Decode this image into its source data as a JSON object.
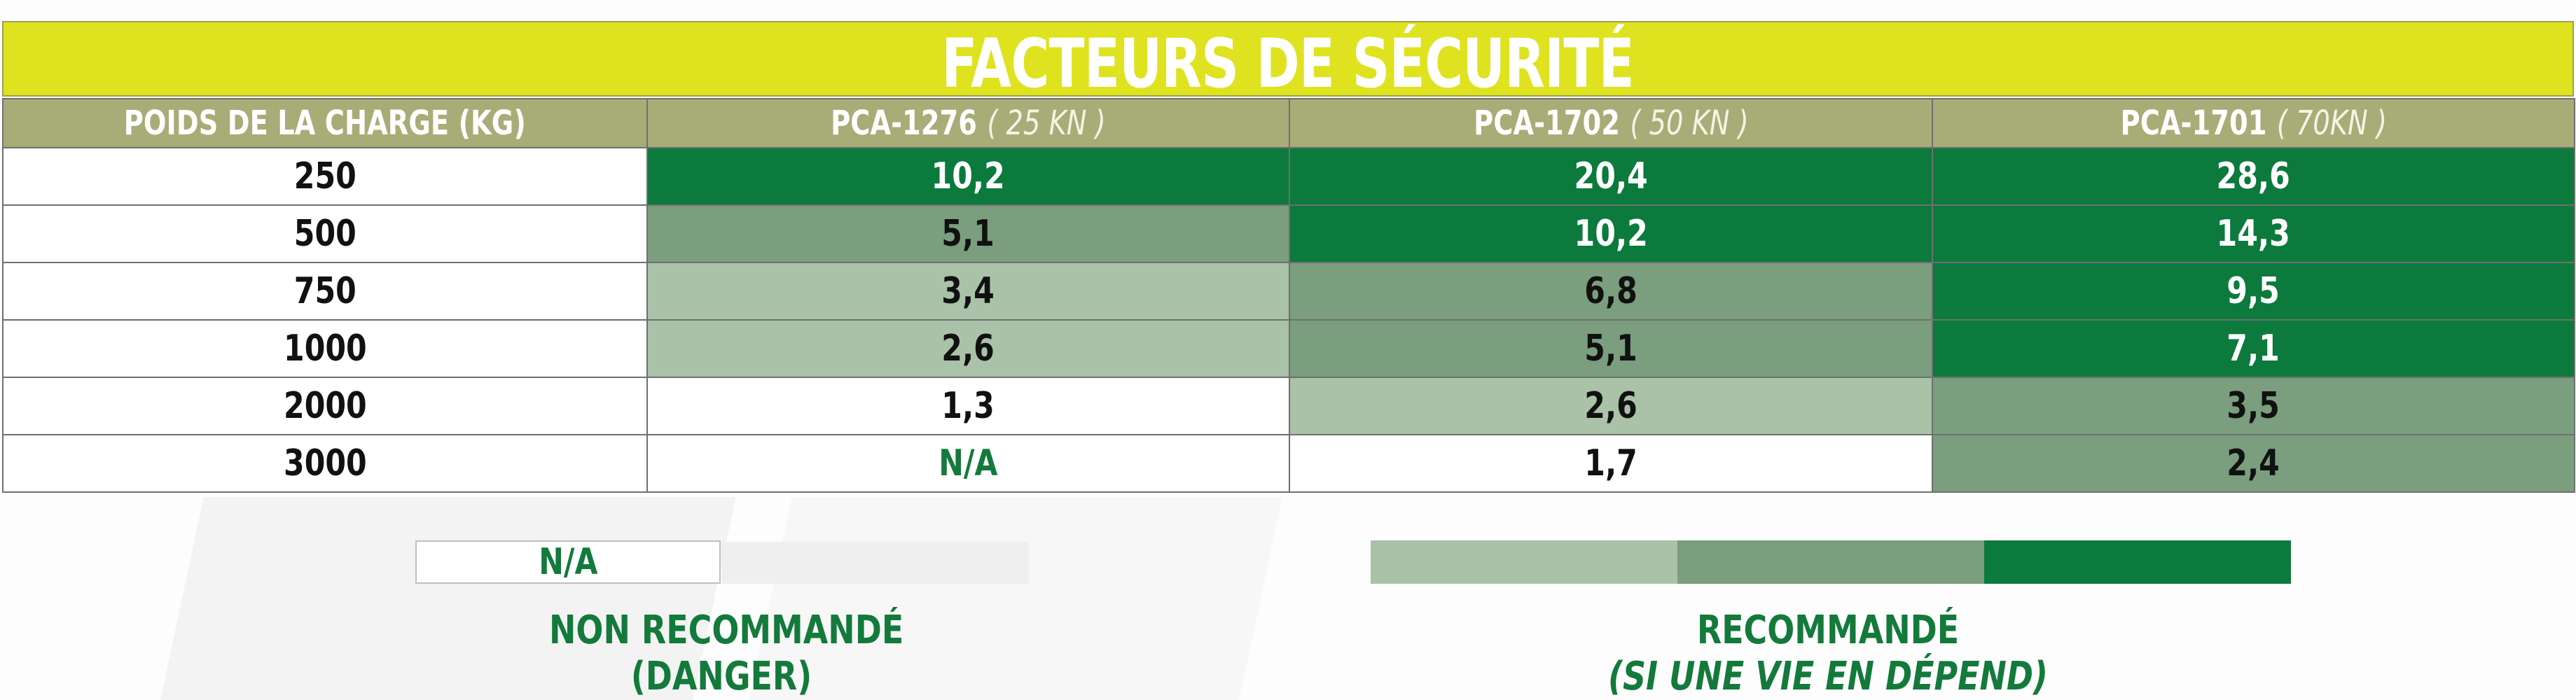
{
  "title": "FACTEURS DE SÉCURITÉ",
  "table": {
    "headers": [
      {
        "label": "POIDS DE LA CHARGE (KG)",
        "sub": ""
      },
      {
        "label": "PCA-1276",
        "sub": "( 25 KN )"
      },
      {
        "label": "PCA-1702",
        "sub": "( 50 KN )"
      },
      {
        "label": "PCA-1701",
        "sub": "( 70KN )"
      }
    ],
    "rows": [
      {
        "load": "250",
        "cells": [
          {
            "v": "10,2",
            "lvl": "dark"
          },
          {
            "v": "20,4",
            "lvl": "dark"
          },
          {
            "v": "28,6",
            "lvl": "dark"
          }
        ]
      },
      {
        "load": "500",
        "cells": [
          {
            "v": "5,1",
            "lvl": "mid"
          },
          {
            "v": "10,2",
            "lvl": "dark"
          },
          {
            "v": "14,3",
            "lvl": "dark"
          }
        ]
      },
      {
        "load": "750",
        "cells": [
          {
            "v": "3,4",
            "lvl": "light"
          },
          {
            "v": "6,8",
            "lvl": "mid"
          },
          {
            "v": "9,5",
            "lvl": "dark"
          }
        ]
      },
      {
        "load": "1000",
        "cells": [
          {
            "v": "2,6",
            "lvl": "light"
          },
          {
            "v": "5,1",
            "lvl": "mid"
          },
          {
            "v": "7,1",
            "lvl": "dark"
          }
        ]
      },
      {
        "load": "2000",
        "cells": [
          {
            "v": "1,3",
            "lvl": "white"
          },
          {
            "v": "2,6",
            "lvl": "light"
          },
          {
            "v": "3,5",
            "lvl": "mid"
          }
        ]
      },
      {
        "load": "3000",
        "cells": [
          {
            "v": "N/A",
            "lvl": "na"
          },
          {
            "v": "1,7",
            "lvl": "white"
          },
          {
            "v": "2,4",
            "lvl": "mid"
          }
        ]
      }
    ]
  },
  "legend": {
    "na_label": "N/A",
    "not_recommended_line1": "NON RECOMMANDÉ",
    "not_recommended_line2": "(DANGER)",
    "recommended_line1": "RECOMMANDÉ",
    "recommended_line2": "(SI UNE VIE EN DÉPEND)"
  },
  "colors": {
    "title_bar": "#dfe21f",
    "header": "#a8ad78",
    "dark_green": "#0b7a3c",
    "mid_green": "#7a9e7e",
    "light_green": "#a9c2a8",
    "text_green": "#137a3b"
  }
}
